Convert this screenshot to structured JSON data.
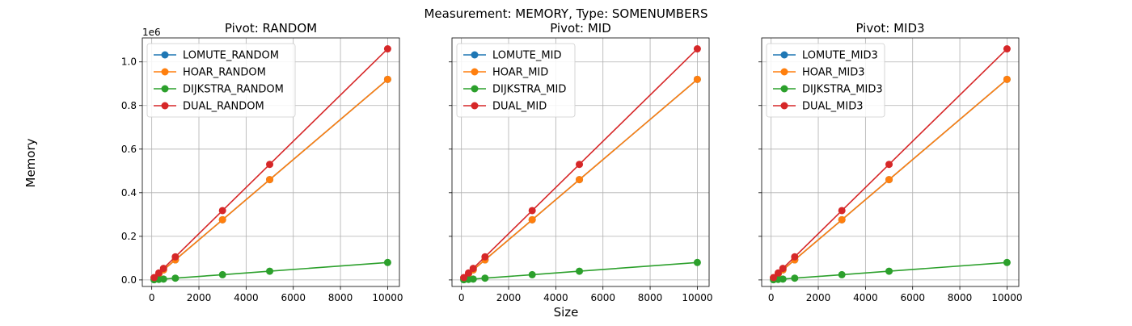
{
  "figure": {
    "suptitle": "Measurement: MEMORY, Type: SOMENUMBERS",
    "xlabel": "Size",
    "ylabel": "Memory",
    "offset_text": "1e6"
  },
  "colors": {
    "LOMUTE": "#1f77b4",
    "HOAR": "#ff7f0e",
    "DIJKSTRA": "#2ca02c",
    "DUAL": "#d62728"
  },
  "chart_data": [
    {
      "type": "line",
      "title": "Pivot: RANDOM",
      "xlabel": "Size",
      "ylabel": "Memory",
      "xlim": [
        -400,
        10500
      ],
      "ylim": [
        -30000,
        1110000
      ],
      "xticks": [
        0,
        2000,
        4000,
        6000,
        8000,
        10000
      ],
      "xtick_labels": [
        "0",
        "2000",
        "4000",
        "6000",
        "8000",
        "10000"
      ],
      "yticks": [
        0,
        200000,
        400000,
        600000,
        800000,
        1000000
      ],
      "ytick_labels": [
        "0.0",
        "0.2",
        "0.4",
        "0.6",
        "0.8",
        "1.0"
      ],
      "grid": true,
      "legend": "top-left",
      "x": [
        100,
        300,
        500,
        1000,
        3000,
        5000,
        10000
      ],
      "series": [
        {
          "name": "LOMUTE_RANDOM",
          "key": "LOMUTE",
          "values": [
            9200,
            27600,
            46000,
            92000,
            276000,
            460000,
            920000
          ]
        },
        {
          "name": "HOAR_RANDOM",
          "key": "HOAR",
          "values": [
            9200,
            27600,
            46000,
            92000,
            276000,
            460000,
            920000
          ]
        },
        {
          "name": "DIJKSTRA_RANDOM",
          "key": "DIJKSTRA",
          "values": [
            800,
            2400,
            4000,
            8000,
            24000,
            40000,
            80000
          ]
        },
        {
          "name": "DUAL_RANDOM",
          "key": "DUAL",
          "values": [
            10600,
            31800,
            53000,
            106000,
            318000,
            530000,
            1060000
          ]
        }
      ]
    },
    {
      "type": "line",
      "title": "Pivot: MID",
      "xlabel": "Size",
      "ylabel": "Memory",
      "xlim": [
        -400,
        10500
      ],
      "ylim": [
        -30000,
        1110000
      ],
      "xticks": [
        0,
        2000,
        4000,
        6000,
        8000,
        10000
      ],
      "xtick_labels": [
        "0",
        "2000",
        "4000",
        "6000",
        "8000",
        "10000"
      ],
      "grid": true,
      "legend": "top-left",
      "x": [
        100,
        300,
        500,
        1000,
        3000,
        5000,
        10000
      ],
      "series": [
        {
          "name": "LOMUTE_MID",
          "key": "LOMUTE",
          "values": [
            9200,
            27600,
            46000,
            92000,
            276000,
            460000,
            920000
          ]
        },
        {
          "name": "HOAR_MID",
          "key": "HOAR",
          "values": [
            9200,
            27600,
            46000,
            92000,
            276000,
            460000,
            920000
          ]
        },
        {
          "name": "DIJKSTRA_MID",
          "key": "DIJKSTRA",
          "values": [
            800,
            2400,
            4000,
            8000,
            24000,
            40000,
            80000
          ]
        },
        {
          "name": "DUAL_MID",
          "key": "DUAL",
          "values": [
            10600,
            31800,
            53000,
            106000,
            318000,
            530000,
            1060000
          ]
        }
      ]
    },
    {
      "type": "line",
      "title": "Pivot: MID3",
      "xlabel": "Size",
      "ylabel": "Memory",
      "xlim": [
        -400,
        10500
      ],
      "ylim": [
        -30000,
        1110000
      ],
      "xticks": [
        0,
        2000,
        4000,
        6000,
        8000,
        10000
      ],
      "xtick_labels": [
        "0",
        "2000",
        "4000",
        "6000",
        "8000",
        "10000"
      ],
      "grid": true,
      "legend": "top-left",
      "x": [
        100,
        300,
        500,
        1000,
        3000,
        5000,
        10000
      ],
      "series": [
        {
          "name": "LOMUTE_MID3",
          "key": "LOMUTE",
          "values": [
            9200,
            27600,
            46000,
            92000,
            276000,
            460000,
            920000
          ]
        },
        {
          "name": "HOAR_MID3",
          "key": "HOAR",
          "values": [
            9200,
            27600,
            46000,
            92000,
            276000,
            460000,
            920000
          ]
        },
        {
          "name": "DIJKSTRA_MID3",
          "key": "DIJKSTRA",
          "values": [
            800,
            2400,
            4000,
            8000,
            24000,
            40000,
            80000
          ]
        },
        {
          "name": "DUAL_MID3",
          "key": "DUAL",
          "values": [
            10600,
            31800,
            53000,
            106000,
            318000,
            530000,
            1060000
          ]
        }
      ]
    }
  ]
}
